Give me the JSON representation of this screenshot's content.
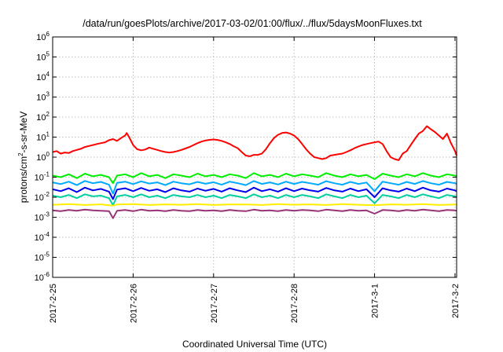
{
  "chart_data": {
    "type": "line",
    "title": "/data/run/goesPlots/archive/2017-03-02/01:00/flux/../flux/5daysMoonFluxes.txt",
    "xlabel": "Coordinated Universal Time (UTC)",
    "ylabel": {
      "base": "protons/cm",
      "sup": "2",
      "rest": "-s-sr-MeV"
    },
    "x_unit": "days",
    "xlim": [
      0,
      5.02
    ],
    "x_ticks": [
      {
        "value": 0,
        "label": "2017-2-25"
      },
      {
        "value": 1,
        "label": "2017-2-26"
      },
      {
        "value": 2,
        "label": "2017-2-27"
      },
      {
        "value": 3,
        "label": "2017-2-28"
      },
      {
        "value": 4,
        "label": "2017-3-1"
      },
      {
        "value": 5,
        "label": "2017-3-2"
      }
    ],
    "y_scale": "log",
    "ylim_exp": [
      -6,
      6
    ],
    "y_ticks": [
      {
        "exp": -6,
        "base": "10",
        "sup": "-6"
      },
      {
        "exp": -5,
        "base": "10",
        "sup": "-5"
      },
      {
        "exp": -4,
        "base": "10",
        "sup": "-4"
      },
      {
        "exp": -3,
        "base": "10",
        "sup": "-3"
      },
      {
        "exp": -2,
        "base": "10",
        "sup": "-2"
      },
      {
        "exp": -1,
        "base": "10",
        "sup": "-1"
      },
      {
        "exp": 0,
        "base": "10",
        "sup": "0"
      },
      {
        "exp": 1,
        "base": "10",
        "sup": "1"
      },
      {
        "exp": 2,
        "base": "10",
        "sup": "2"
      },
      {
        "exp": 3,
        "base": "10",
        "sup": "3"
      },
      {
        "exp": 4,
        "base": "10",
        "sup": "4"
      },
      {
        "exp": 5,
        "base": "10",
        "sup": "5"
      },
      {
        "exp": 6,
        "base": "10",
        "sup": "6"
      }
    ],
    "grid": true,
    "series": [
      {
        "color": "#ff0000",
        "x": [
          0.0,
          0.05,
          0.1,
          0.15,
          0.2,
          0.25,
          0.3,
          0.35,
          0.4,
          0.45,
          0.5,
          0.55,
          0.6,
          0.65,
          0.7,
          0.75,
          0.8,
          0.85,
          0.9,
          0.92,
          0.95,
          1.0,
          1.05,
          1.1,
          1.15,
          1.2,
          1.25,
          1.3,
          1.35,
          1.4,
          1.45,
          1.5,
          1.55,
          1.6,
          1.65,
          1.7,
          1.75,
          1.8,
          1.85,
          1.9,
          1.95,
          2.0,
          2.05,
          2.1,
          2.15,
          2.2,
          2.25,
          2.3,
          2.35,
          2.4,
          2.45,
          2.5,
          2.55,
          2.6,
          2.65,
          2.7,
          2.75,
          2.8,
          2.85,
          2.9,
          2.95,
          3.0,
          3.05,
          3.1,
          3.15,
          3.2,
          3.25,
          3.3,
          3.35,
          3.4,
          3.45,
          3.5,
          3.55,
          3.6,
          3.65,
          3.7,
          3.75,
          3.8,
          3.85,
          3.9,
          3.95,
          4.0,
          4.05,
          4.1,
          4.15,
          4.2,
          4.25,
          4.3,
          4.35,
          4.4,
          4.45,
          4.5,
          4.55,
          4.6,
          4.65,
          4.7,
          4.75,
          4.8,
          4.85,
          4.9,
          4.95,
          5.0,
          5.02
        ],
        "y": [
          1.8,
          2.0,
          1.5,
          1.7,
          1.6,
          2.0,
          2.3,
          2.6,
          3.2,
          3.6,
          4.0,
          4.5,
          5.0,
          5.5,
          7.0,
          8.0,
          6.5,
          9.0,
          12,
          16,
          10,
          4.0,
          2.5,
          2.2,
          2.4,
          3.0,
          2.6,
          2.3,
          2.0,
          1.8,
          1.7,
          1.8,
          2.0,
          2.3,
          2.7,
          3.2,
          4.0,
          5.0,
          6.0,
          6.8,
          7.3,
          7.6,
          7.2,
          6.5,
          5.5,
          4.5,
          3.5,
          2.8,
          1.8,
          1.2,
          1.1,
          1.3,
          1.3,
          1.5,
          2.5,
          5.0,
          9.0,
          13,
          16,
          17,
          15,
          12,
          8.0,
          4.5,
          2.5,
          1.5,
          1.0,
          0.9,
          0.8,
          0.9,
          1.2,
          1.3,
          1.4,
          1.5,
          1.8,
          2.2,
          2.8,
          3.4,
          4.0,
          4.5,
          5.0,
          5.5,
          6.0,
          4.5,
          2.0,
          1.0,
          0.8,
          0.7,
          1.5,
          2.0,
          4.0,
          8.0,
          15,
          20,
          35,
          25,
          18,
          12,
          8.0,
          15,
          5.0,
          2.0,
          1.2
        ]
      },
      {
        "color": "#00ee00",
        "x": [
          0.0,
          0.1,
          0.2,
          0.3,
          0.4,
          0.5,
          0.6,
          0.7,
          0.75,
          0.8,
          0.9,
          1.0,
          1.1,
          1.2,
          1.3,
          1.4,
          1.5,
          1.6,
          1.7,
          1.8,
          1.9,
          2.0,
          2.1,
          2.2,
          2.3,
          2.4,
          2.5,
          2.6,
          2.7,
          2.8,
          2.9,
          3.0,
          3.1,
          3.2,
          3.3,
          3.4,
          3.5,
          3.6,
          3.7,
          3.8,
          3.9,
          4.0,
          4.1,
          4.2,
          4.3,
          4.4,
          4.5,
          4.6,
          4.7,
          4.8,
          4.9,
          5.0,
          5.02
        ],
        "y": [
          0.12,
          0.1,
          0.14,
          0.09,
          0.15,
          0.11,
          0.13,
          0.1,
          0.05,
          0.12,
          0.14,
          0.1,
          0.16,
          0.11,
          0.13,
          0.09,
          0.14,
          0.12,
          0.1,
          0.15,
          0.11,
          0.13,
          0.1,
          0.14,
          0.12,
          0.09,
          0.16,
          0.11,
          0.13,
          0.1,
          0.15,
          0.11,
          0.14,
          0.12,
          0.1,
          0.16,
          0.12,
          0.1,
          0.14,
          0.11,
          0.13,
          0.08,
          0.15,
          0.12,
          0.1,
          0.14,
          0.11,
          0.16,
          0.12,
          0.1,
          0.14,
          0.12,
          0.11
        ]
      },
      {
        "color": "#00aaff",
        "x": [
          0.0,
          0.1,
          0.2,
          0.3,
          0.4,
          0.5,
          0.6,
          0.7,
          0.75,
          0.8,
          0.9,
          1.0,
          1.1,
          1.2,
          1.3,
          1.4,
          1.5,
          1.6,
          1.7,
          1.8,
          1.9,
          2.0,
          2.1,
          2.2,
          2.3,
          2.4,
          2.5,
          2.6,
          2.7,
          2.8,
          2.9,
          3.0,
          3.1,
          3.2,
          3.3,
          3.4,
          3.5,
          3.6,
          3.7,
          3.8,
          3.9,
          4.0,
          4.1,
          4.2,
          4.3,
          4.4,
          4.5,
          4.6,
          4.7,
          4.8,
          4.9,
          5.0,
          5.02
        ],
        "y": [
          0.055,
          0.045,
          0.06,
          0.04,
          0.065,
          0.05,
          0.058,
          0.042,
          0.015,
          0.052,
          0.06,
          0.045,
          0.062,
          0.048,
          0.055,
          0.04,
          0.06,
          0.05,
          0.044,
          0.058,
          0.047,
          0.056,
          0.042,
          0.06,
          0.05,
          0.04,
          0.064,
          0.046,
          0.055,
          0.043,
          0.06,
          0.046,
          0.058,
          0.05,
          0.042,
          0.063,
          0.05,
          0.042,
          0.058,
          0.046,
          0.054,
          0.02,
          0.06,
          0.05,
          0.042,
          0.058,
          0.046,
          0.064,
          0.05,
          0.042,
          0.058,
          0.05,
          0.046
        ]
      },
      {
        "color": "#0000ee",
        "x": [
          0.0,
          0.1,
          0.2,
          0.3,
          0.4,
          0.5,
          0.6,
          0.7,
          0.75,
          0.8,
          0.9,
          1.0,
          1.1,
          1.2,
          1.3,
          1.4,
          1.5,
          1.6,
          1.7,
          1.8,
          1.9,
          2.0,
          2.1,
          2.2,
          2.3,
          2.4,
          2.5,
          2.6,
          2.7,
          2.8,
          2.9,
          3.0,
          3.1,
          3.2,
          3.3,
          3.4,
          3.5,
          3.6,
          3.7,
          3.8,
          3.9,
          4.0,
          4.1,
          4.2,
          4.3,
          4.4,
          4.5,
          4.6,
          4.7,
          4.8,
          4.9,
          5.0,
          5.02
        ],
        "y": [
          0.025,
          0.02,
          0.028,
          0.018,
          0.03,
          0.022,
          0.026,
          0.019,
          0.008,
          0.024,
          0.028,
          0.02,
          0.029,
          0.021,
          0.025,
          0.018,
          0.028,
          0.022,
          0.019,
          0.027,
          0.021,
          0.026,
          0.019,
          0.028,
          0.022,
          0.018,
          0.03,
          0.02,
          0.025,
          0.019,
          0.028,
          0.02,
          0.027,
          0.022,
          0.019,
          0.029,
          0.022,
          0.019,
          0.027,
          0.02,
          0.025,
          0.01,
          0.028,
          0.022,
          0.019,
          0.027,
          0.02,
          0.03,
          0.022,
          0.019,
          0.027,
          0.022,
          0.02
        ]
      },
      {
        "color": "#00d0a0",
        "x": [
          0.0,
          0.1,
          0.2,
          0.3,
          0.4,
          0.5,
          0.6,
          0.7,
          0.75,
          0.8,
          0.9,
          1.0,
          1.1,
          1.2,
          1.3,
          1.4,
          1.5,
          1.6,
          1.7,
          1.8,
          1.9,
          2.0,
          2.1,
          2.2,
          2.3,
          2.4,
          2.5,
          2.6,
          2.7,
          2.8,
          2.9,
          3.0,
          3.1,
          3.2,
          3.3,
          3.4,
          3.5,
          3.6,
          3.7,
          3.8,
          3.9,
          4.0,
          4.1,
          4.2,
          4.3,
          4.4,
          4.5,
          4.6,
          4.7,
          4.8,
          4.9,
          5.0,
          5.02
        ],
        "y": [
          0.012,
          0.01,
          0.013,
          0.009,
          0.014,
          0.011,
          0.012,
          0.009,
          0.004,
          0.011,
          0.013,
          0.01,
          0.014,
          0.01,
          0.012,
          0.009,
          0.013,
          0.011,
          0.01,
          0.013,
          0.01,
          0.012,
          0.009,
          0.013,
          0.011,
          0.009,
          0.014,
          0.01,
          0.012,
          0.009,
          0.013,
          0.01,
          0.013,
          0.011,
          0.009,
          0.014,
          0.011,
          0.009,
          0.013,
          0.01,
          0.012,
          0.005,
          0.013,
          0.011,
          0.009,
          0.013,
          0.01,
          0.014,
          0.011,
          0.009,
          0.013,
          0.011,
          0.01
        ]
      },
      {
        "color": "#ffee00",
        "x": [
          0.0,
          0.2,
          0.4,
          0.6,
          0.75,
          0.8,
          1.0,
          1.2,
          1.4,
          1.6,
          1.8,
          2.0,
          2.2,
          2.4,
          2.6,
          2.8,
          3.0,
          3.2,
          3.4,
          3.6,
          3.8,
          4.0,
          4.2,
          4.4,
          4.6,
          4.8,
          5.0,
          5.02
        ],
        "y": [
          0.0042,
          0.0045,
          0.0041,
          0.0044,
          0.0038,
          0.0043,
          0.0045,
          0.0041,
          0.0044,
          0.0042,
          0.0045,
          0.0041,
          0.0044,
          0.0043,
          0.0041,
          0.0045,
          0.0042,
          0.0044,
          0.0041,
          0.0045,
          0.0042,
          0.004,
          0.0044,
          0.0042,
          0.0045,
          0.0041,
          0.0043,
          0.0042
        ]
      },
      {
        "color": "#993377",
        "x": [
          0.0,
          0.1,
          0.2,
          0.3,
          0.4,
          0.5,
          0.6,
          0.7,
          0.75,
          0.8,
          0.9,
          1.0,
          1.1,
          1.2,
          1.3,
          1.4,
          1.5,
          1.6,
          1.7,
          1.8,
          1.9,
          2.0,
          2.1,
          2.2,
          2.3,
          2.4,
          2.5,
          2.6,
          2.7,
          2.8,
          2.9,
          3.0,
          3.1,
          3.2,
          3.3,
          3.4,
          3.5,
          3.6,
          3.7,
          3.8,
          3.9,
          4.0,
          4.1,
          4.2,
          4.3,
          4.4,
          4.5,
          4.6,
          4.7,
          4.8,
          4.9,
          5.0,
          5.02
        ],
        "y": [
          0.0022,
          0.002,
          0.0023,
          0.0021,
          0.0024,
          0.0022,
          0.0021,
          0.002,
          0.0009,
          0.0021,
          0.0023,
          0.002,
          0.0024,
          0.0021,
          0.0022,
          0.002,
          0.0023,
          0.0021,
          0.002,
          0.0023,
          0.0021,
          0.0022,
          0.002,
          0.0023,
          0.0021,
          0.002,
          0.0024,
          0.0021,
          0.0022,
          0.002,
          0.0023,
          0.0021,
          0.0023,
          0.0022,
          0.002,
          0.0024,
          0.0022,
          0.002,
          0.0023,
          0.0021,
          0.0022,
          0.0015,
          0.0023,
          0.0022,
          0.002,
          0.0023,
          0.0021,
          0.0024,
          0.0022,
          0.002,
          0.0023,
          0.0022,
          0.0021
        ]
      }
    ]
  }
}
